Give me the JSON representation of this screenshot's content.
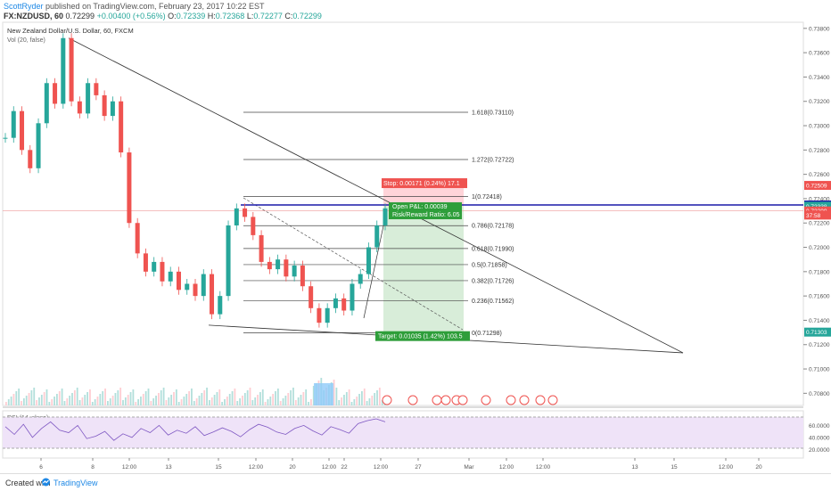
{
  "header": {
    "user": "ScottRyder",
    "published_text": " published on TradingView.com, February 23, 2017 10:22 EST"
  },
  "symbol_bar": {
    "symbol": "FX:NZDUSD, 60",
    "last": "0.72299",
    "change": "+0.00400 (+0.56%)",
    "o_label": "O:",
    "o": "0.72339",
    "h_label": "H:",
    "h": "0.72368",
    "l_label": "L:",
    "l": "0.72277",
    "c_label": "C:",
    "c": "0.72299"
  },
  "legend": {
    "title": "New Zealand Dollar/U.S. Dollar, 60, FXCM",
    "volume": "Vol (20, false)",
    "rsi": "RSI (14, close)"
  },
  "footer": {
    "created_with": "Created with",
    "brand": "TradingView"
  },
  "colors": {
    "up": "#26a69a",
    "down": "#ef5350",
    "blue_line": "#1a1aa8",
    "rsi_fill": "#efe3f8",
    "profit": "#c8e6c9",
    "stop": "#ffcdd2"
  },
  "chart_data": {
    "type": "line",
    "title": "New Zealand Dollar/U.S. Dollar, 60, FXCM",
    "ylim": [
      0.707,
      0.7385
    ],
    "y_ticks": [
      "0.73800",
      "0.73600",
      "0.73400",
      "0.73200",
      "0.73000",
      "0.72800",
      "0.72600",
      "0.72400",
      "0.72200",
      "0.72000",
      "0.71800",
      "0.71600",
      "0.71400",
      "0.71200",
      "0.71000",
      "0.70800"
    ],
    "x_ticks": [
      "6",
      "8",
      "12:00",
      "13",
      "15",
      "12:00",
      "20",
      "12:00",
      "22",
      "12:00",
      "27",
      "Mar",
      "12:00",
      "12:00",
      "13",
      "15",
      "12:00",
      "20"
    ],
    "series": [
      {
        "values": [
          0.729,
          0.7312,
          0.728,
          0.7265,
          0.7302,
          0.7335,
          0.7318,
          0.7372,
          0.732,
          0.731,
          0.7335,
          0.7325,
          0.7308,
          0.732,
          0.7278,
          0.722,
          0.7195,
          0.718,
          0.7188,
          0.7172,
          0.718,
          0.7165,
          0.717,
          0.716,
          0.7178,
          0.7145,
          0.716,
          0.7218,
          0.7232,
          0.7225,
          0.721,
          0.7188,
          0.7182,
          0.719,
          0.7176,
          0.7185,
          0.7168,
          0.715,
          0.7138,
          0.715,
          0.7158,
          0.7148,
          0.717,
          0.7178,
          0.72,
          0.7218,
          0.7232
        ]
      }
    ],
    "fib_levels": [
      "1.618(0.73110)",
      "1.272(0.72722)",
      "1(0.72418)",
      "0.786(0.72178)",
      "0.618(0.71990)",
      "0.5(0.71858)",
      "0.382(0.71726)",
      "0.236(0.71562)",
      "0(0.71298)"
    ],
    "fib_values": [
      0.7311,
      0.72722,
      0.72418,
      0.72178,
      0.7199,
      0.71858,
      0.71726,
      0.71562,
      0.71298
    ],
    "stop_label": "Stop: 0.00171 (0.24%) 17.1",
    "open_pnl": "Open P&L: 0.00039",
    "risk_reward": "Risk/Reward Ratio: 6.05",
    "target_label": "Target: 0.01035 (1.42%) 103.5",
    "price_tags": [
      {
        "text": "0.72509",
        "value": 0.72509,
        "color": "#ef5350"
      },
      {
        "text": "0.72348",
        "value": 0.72348,
        "color": "#1a1aa8"
      },
      {
        "text": "0.72338",
        "value": 0.72338,
        "color": "#26a69a"
      },
      {
        "text": "0.72299",
        "value": 0.72299,
        "color": "#ef5350"
      },
      {
        "text": "37:58",
        "value": 0.72265,
        "color": "#ef5350"
      },
      {
        "text": "0.71303",
        "value": 0.71303,
        "color": "#26a69a"
      }
    ],
    "rsi_ticks": [
      "60.0000",
      "40.0000",
      "20.0000"
    ],
    "rsi_values": [
      58,
      45,
      62,
      40,
      55,
      66,
      52,
      48,
      60,
      38,
      42,
      50,
      35,
      46,
      40,
      55,
      48,
      60,
      44,
      52,
      47,
      58,
      43,
      49,
      56,
      50,
      41,
      53,
      62,
      57,
      49,
      45,
      55,
      60,
      51,
      44,
      58,
      53,
      47,
      63,
      68,
      71,
      66
    ]
  }
}
